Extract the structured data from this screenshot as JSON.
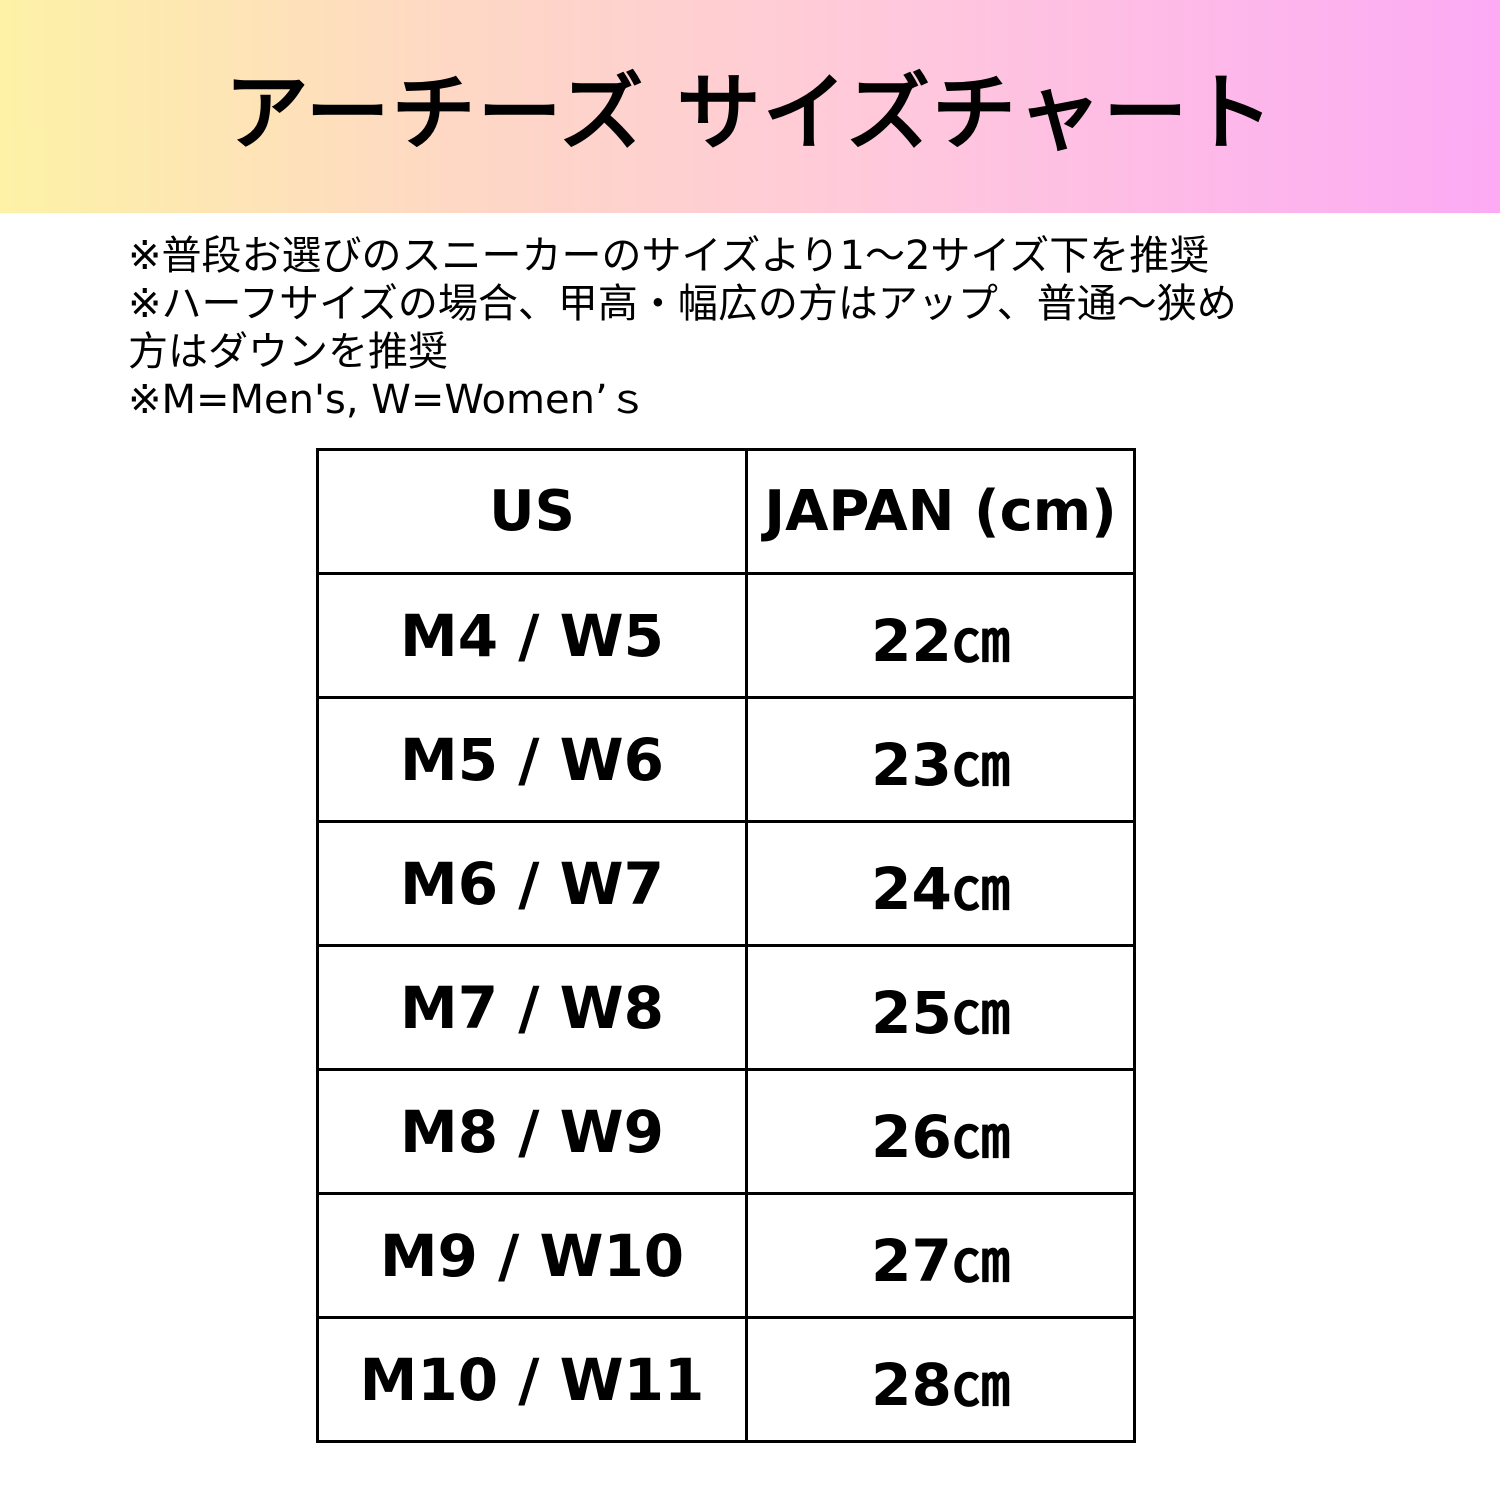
{
  "header": {
    "title": "アーチーズ サイズチャート"
  },
  "notes": [
    "※普段お選びのスニーカーのサイズより1〜2サイズ下を推奨",
    "※ハーフサイズの場合、甲高・幅広の方はアップ、普通〜狭め",
    "方はダウンを推奨",
    "※M=Men's, W=Women’ｓ"
  ],
  "table": {
    "headers": [
      "US",
      "JAPAN (cm)"
    ],
    "rows": [
      [
        "M4 / W5",
        "22㎝"
      ],
      [
        "M5 / W6",
        "23㎝"
      ],
      [
        "M6 / W7",
        "24㎝"
      ],
      [
        "M7 / W8",
        "25㎝"
      ],
      [
        "M8 / W9",
        "26㎝"
      ],
      [
        "M9 / W10",
        "27㎝"
      ],
      [
        "M10 / W11",
        "28㎝"
      ]
    ]
  },
  "colors": {
    "gradient_left": "#fdf2a6",
    "gradient_mid": "#ffc8dc",
    "gradient_right": "#fcaaf4"
  }
}
